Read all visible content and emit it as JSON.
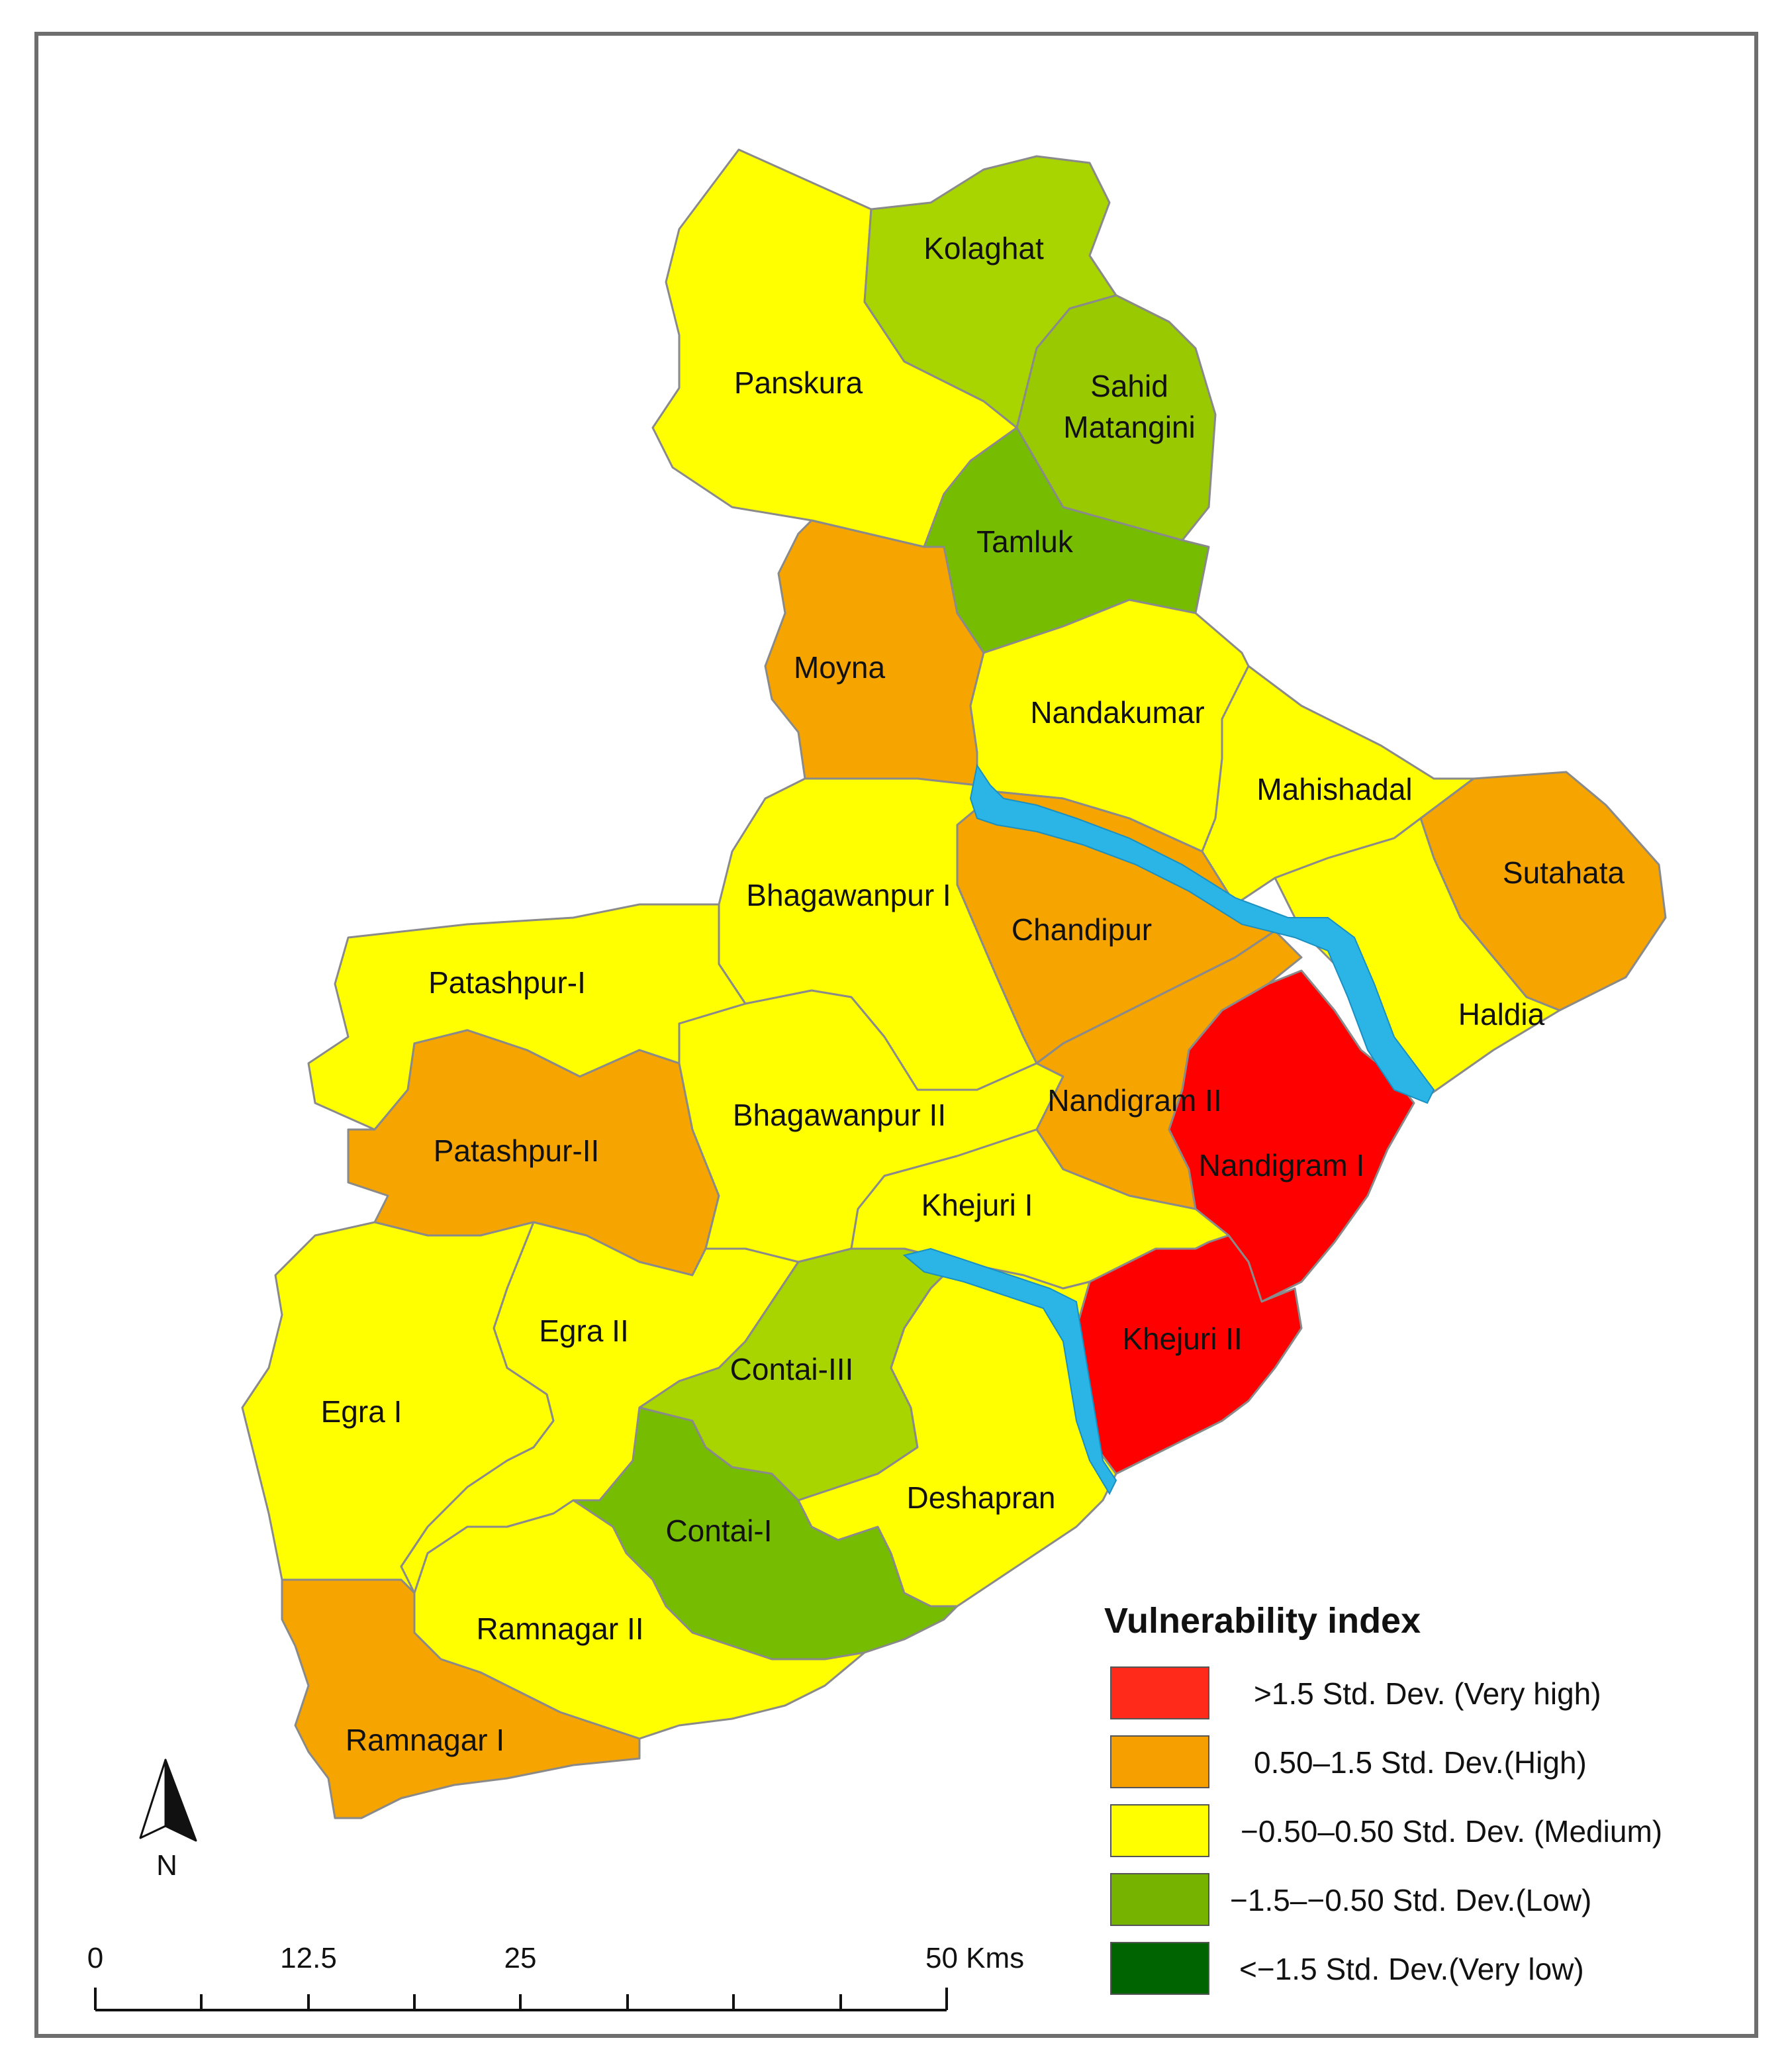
{
  "colors": {
    "very_high": "#ff0000",
    "high": "#f5a400",
    "medium": "#ffff00",
    "low": "#99cc00",
    "low_dark": "#76bc00",
    "very_low": "#006600",
    "river": "#2bb5e6"
  },
  "map": {
    "districts": [
      {
        "name": "Kolaghat",
        "class": "low"
      },
      {
        "name": "Panskura",
        "class": "medium"
      },
      {
        "name": "Sahid Matangini",
        "line1": "Sahid",
        "line2": "Matangini",
        "class": "low"
      },
      {
        "name": "Tamluk",
        "class": "low"
      },
      {
        "name": "Moyna",
        "class": "high"
      },
      {
        "name": "Nandakumar",
        "class": "medium"
      },
      {
        "name": "Mahishadal",
        "class": "medium"
      },
      {
        "name": "Sutahata",
        "class": "high"
      },
      {
        "name": "Bhagawanpur I",
        "class": "medium"
      },
      {
        "name": "Chandipur",
        "class": "high"
      },
      {
        "name": "Haldia",
        "class": "medium"
      },
      {
        "name": "Patashpur-I",
        "class": "medium"
      },
      {
        "name": "Patashpur-II",
        "class": "high"
      },
      {
        "name": "Bhagawanpur II",
        "class": "medium"
      },
      {
        "name": "Nandigram II",
        "class": "high"
      },
      {
        "name": "Nandigram I",
        "class": "very_high"
      },
      {
        "name": "Khejuri I",
        "class": "medium"
      },
      {
        "name": "Khejuri II",
        "class": "very_high"
      },
      {
        "name": "Egra II",
        "class": "medium"
      },
      {
        "name": "Egra I",
        "class": "medium"
      },
      {
        "name": "Contai-III",
        "class": "low"
      },
      {
        "name": "Contai-I",
        "class": "low"
      },
      {
        "name": "Deshapran",
        "class": "medium"
      },
      {
        "name": "Ramnagar II",
        "class": "medium"
      },
      {
        "name": "Ramnagar I",
        "class": "high"
      }
    ]
  },
  "legend": {
    "title": "Vulnerability index",
    "items": [
      {
        "label": ">1.5 Std. Dev. (Very high)",
        "color": "#ff2a1a"
      },
      {
        "label": "0.50–1.5 Std. Dev.(High)",
        "color": "#f5a000"
      },
      {
        "label": "−0.50–0.50 Std. Dev. (Medium)",
        "color": "#ffff00"
      },
      {
        "label": "−1.5–−0.50 Std. Dev.(Low)",
        "color": "#76b200"
      },
      {
        "label": "<−1.5 Std. Dev.(Very low)",
        "color": "#006400"
      }
    ]
  },
  "scale_bar": {
    "ticks": [
      "0",
      "12.5",
      "25",
      "50 Kms"
    ]
  },
  "north_arrow": {
    "label": "N",
    "icon": "north-arrow-icon"
  }
}
